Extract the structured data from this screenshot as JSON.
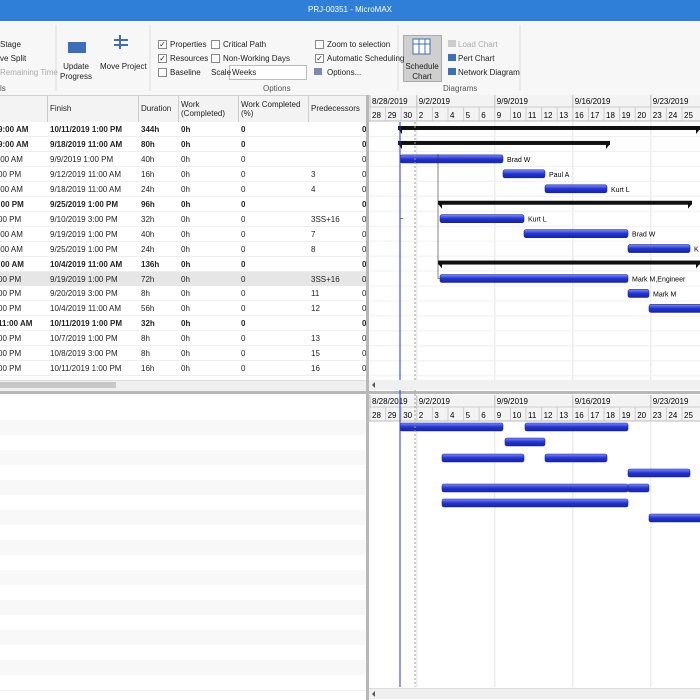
{
  "title_bar": "PRJ-00351 - MicroMAX",
  "ribbon": {
    "left_items": [
      "Stage",
      "ve Split",
      "Remaining Time"
    ],
    "left_group": "ls",
    "update_progress": "Update Progress",
    "move_project": "Move Project",
    "checkboxes": [
      {
        "label": "Properties",
        "checked": true
      },
      {
        "label": "Resources",
        "checked": true
      },
      {
        "label": "Baseline",
        "checked": false
      },
      {
        "label": "Critical Path",
        "checked": false
      },
      {
        "label": "Non-Working Days",
        "checked": false
      },
      {
        "label": "Zoom to selection",
        "checked": false
      },
      {
        "label": "Automatic Scheduling",
        "checked": true
      }
    ],
    "scale_label": "Scale",
    "scale_value": "Weeks",
    "options_button": "Options...",
    "options_group": "Options",
    "schedule_chart": "Schedule Chart",
    "load_chart": "Load Chart",
    "pert_chart": "Pert Chart",
    "network_diagram": "Network Diagram",
    "diagrams_group": "Diagrams"
  },
  "table": {
    "columns": [
      "Finish",
      "Duration",
      "Work (Completed)",
      "Work Completed (%)",
      "Predecessors"
    ],
    "rows": [
      {
        "start": "9:00 AM",
        "finish": "10/11/2019 1:00 PM",
        "duration": "344h",
        "work": "0h",
        "pct": "0",
        "last": "0",
        "bold": true
      },
      {
        "start": "9:00 AM",
        "finish": "9/18/2019 11:00 AM",
        "duration": "80h",
        "work": "0h",
        "pct": "0",
        "last": "0",
        "bold": true
      },
      {
        "start": ":00 AM",
        "finish": "9/9/2019 1:00 PM",
        "duration": "40h",
        "work": "0h",
        "pct": "0",
        "last": "0"
      },
      {
        "start": "00 PM",
        "finish": "9/12/2019 11:00 AM",
        "duration": "16h",
        "work": "0h",
        "pct": "0",
        "pred": "3",
        "last": "0"
      },
      {
        "start": ":00 AM",
        "finish": "9/18/2019 11:00 AM",
        "duration": "24h",
        "work": "0h",
        "pct": "0",
        "pred": "4",
        "last": "0"
      },
      {
        "start": ":00 PM",
        "finish": "9/25/2019 1:00 PM",
        "duration": "96h",
        "work": "0h",
        "pct": "0",
        "last": "0",
        "bold": true
      },
      {
        "start": "00 PM",
        "finish": "9/10/2019 3:00 PM",
        "duration": "32h",
        "work": "0h",
        "pct": "0",
        "pred": "3SS+16",
        "last": "0"
      },
      {
        "start": ":00 AM",
        "finish": "9/19/2019 1:00 PM",
        "duration": "40h",
        "work": "0h",
        "pct": "0",
        "pred": "7",
        "last": "0"
      },
      {
        "start": ":00 AM",
        "finish": "9/25/2019 1:00 PM",
        "duration": "24h",
        "work": "0h",
        "pct": "0",
        "pred": "8",
        "last": "0"
      },
      {
        "start": ":00 AM",
        "finish": "10/4/2019 11:00 AM",
        "duration": "136h",
        "work": "0h",
        "pct": "0",
        "last": "0",
        "bold": true
      },
      {
        "start": "00 PM",
        "finish": "9/19/2019 1:00 PM",
        "duration": "72h",
        "work": "0h",
        "pct": "0",
        "pred": "3SS+16",
        "last": "0",
        "selected": true
      },
      {
        "start": "00 PM",
        "finish": "9/20/2019 3:00 PM",
        "duration": "8h",
        "work": "0h",
        "pct": "0",
        "pred": "11",
        "last": "0"
      },
      {
        "start": "00 PM",
        "finish": "10/4/2019 11:00 AM",
        "duration": "56h",
        "work": "0h",
        "pct": "0",
        "pred": "12",
        "last": "0"
      },
      {
        "start": "11:00 AM",
        "finish": "10/11/2019 1:00 PM",
        "duration": "32h",
        "work": "0h",
        "pct": "0",
        "last": "0",
        "bold": true
      },
      {
        "start": "00 PM",
        "finish": "10/7/2019 1:00 PM",
        "duration": "8h",
        "work": "0h",
        "pct": "0",
        "pred": "13",
        "last": "0"
      },
      {
        "start": "00 PM",
        "finish": "10/8/2019 3:00 PM",
        "duration": "8h",
        "work": "0h",
        "pct": "0",
        "pred": "15",
        "last": "0"
      },
      {
        "start": "00 PM",
        "finish": "10/11/2019 1:00 PM",
        "duration": "16h",
        "work": "0h",
        "pct": "0",
        "pred": "16",
        "last": "0"
      }
    ]
  },
  "gantt": {
    "weeks": [
      "8/28/2019",
      "9/2/2019",
      "9/9/2019",
      "9/16/2019",
      "9/23/2019"
    ],
    "days": [
      "28",
      "29",
      "30",
      "2",
      "3",
      "4",
      "5",
      "6",
      "9",
      "10",
      "11",
      "12",
      "13",
      "16",
      "17",
      "18",
      "19",
      "20",
      "23",
      "24",
      "25"
    ],
    "bar_labels": [
      "Brad W",
      "Paul A",
      "Kurt L",
      "Kurt L",
      "Brad W",
      "K",
      "Mark M,Engineer",
      "Mark M"
    ]
  }
}
